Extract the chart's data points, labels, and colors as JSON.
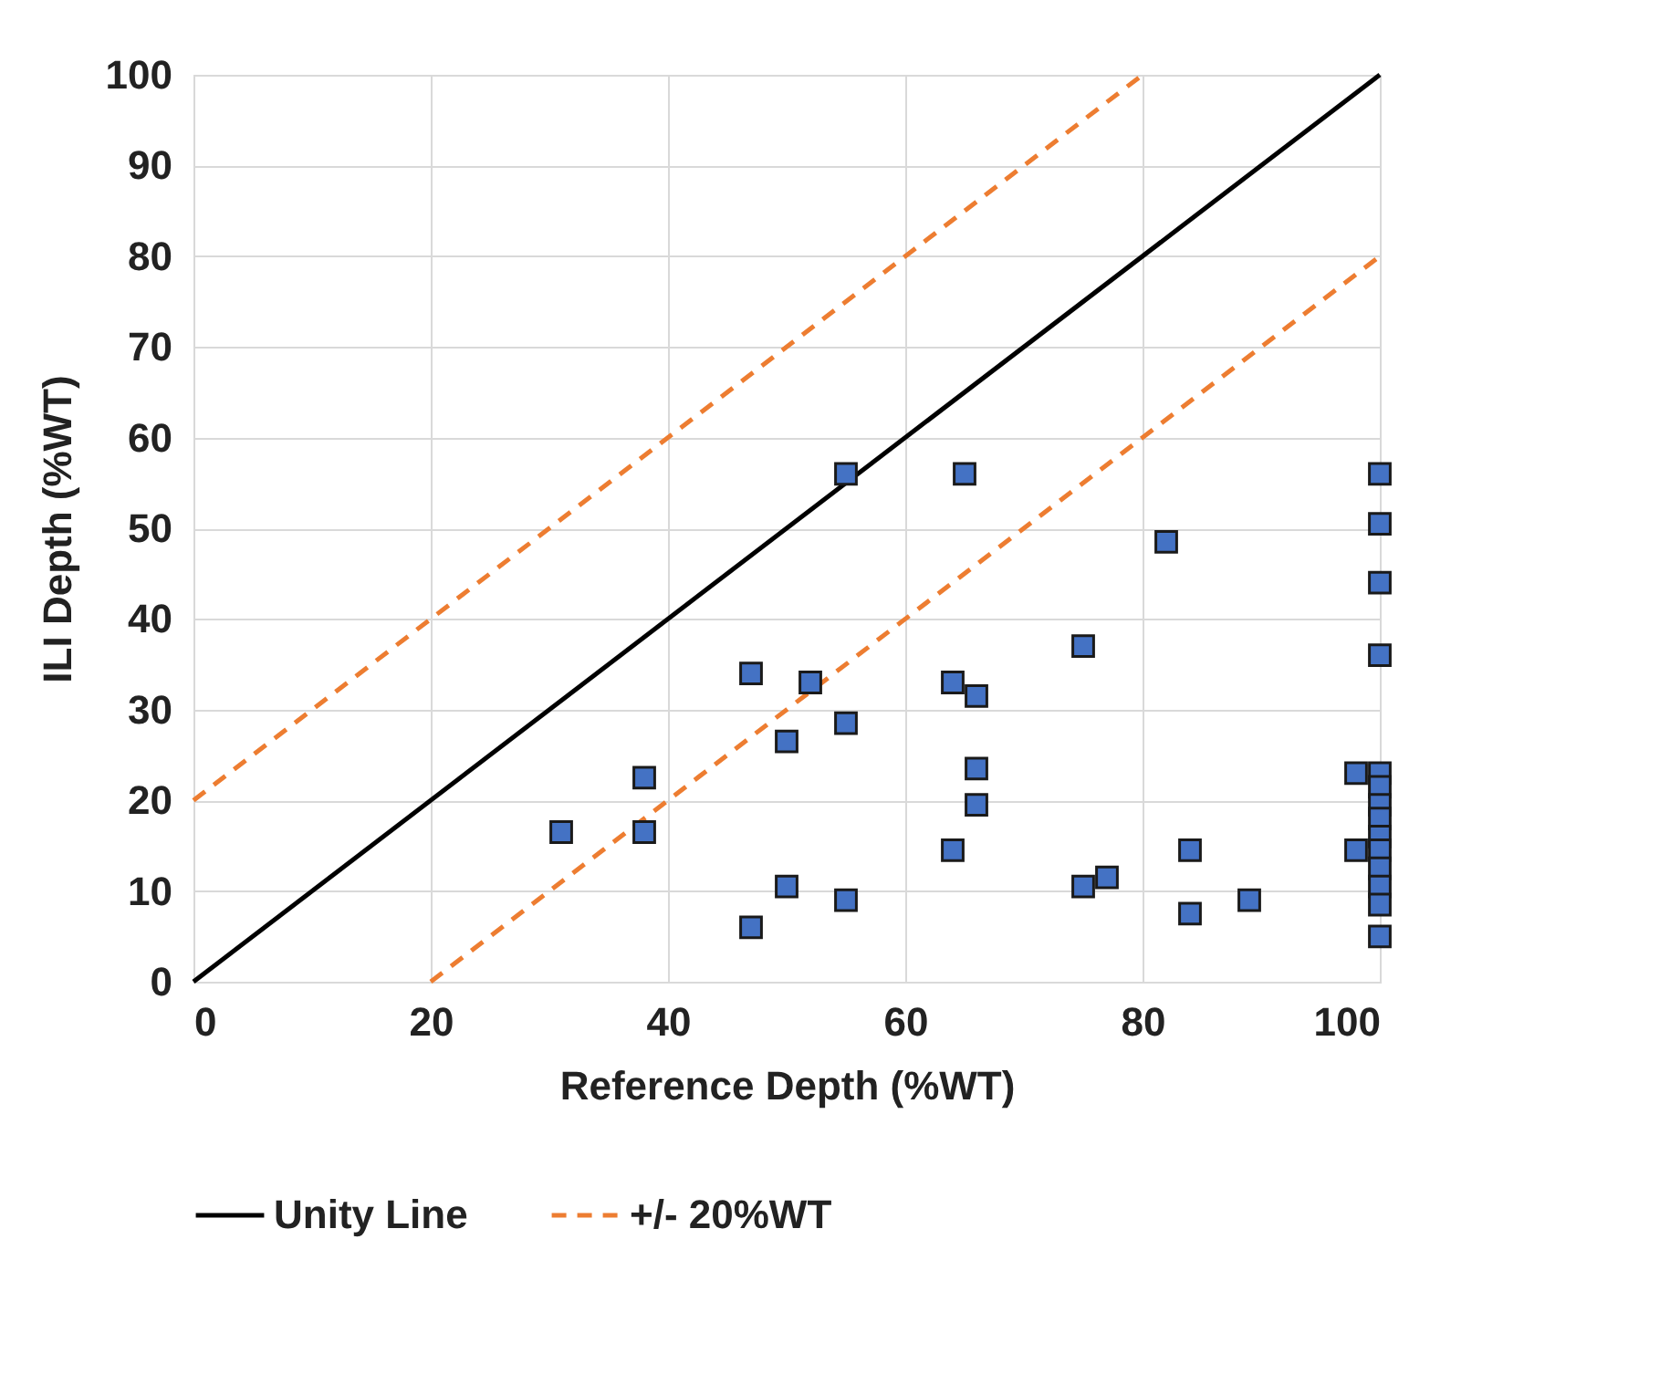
{
  "chart_data": {
    "type": "scatter",
    "xlabel": "Reference Depth  (%WT)",
    "ylabel": "ILI Depth  (%WT)",
    "xlim": [
      0,
      100
    ],
    "ylim": [
      0,
      100
    ],
    "xticks": [
      0,
      20,
      40,
      60,
      80,
      100
    ],
    "yticks": [
      0,
      10,
      20,
      30,
      40,
      50,
      60,
      70,
      80,
      90,
      100
    ],
    "grid": true,
    "legend": "bottom",
    "series": [
      {
        "marker": "square",
        "color": "#4472c4",
        "x": [
          31,
          38,
          38,
          47,
          47,
          50,
          50,
          52,
          55,
          55,
          55,
          64,
          64,
          65,
          66,
          66,
          66,
          75,
          75,
          77,
          82,
          84,
          84,
          89,
          98,
          98,
          100,
          100,
          100,
          100,
          100,
          100,
          100,
          100,
          100,
          100,
          100,
          100,
          100,
          100
        ],
        "values": [
          16.5,
          22.5,
          16.5,
          34,
          6,
          26.5,
          10.5,
          33,
          56,
          28.5,
          9,
          33,
          14.5,
          56,
          31.5,
          23.5,
          19.5,
          37,
          10.5,
          11.5,
          48.5,
          14.5,
          7.5,
          9,
          23,
          14.5,
          56,
          50.5,
          44,
          36,
          23,
          21.5,
          19.5,
          18,
          16,
          14.5,
          12.5,
          10.5,
          8.5,
          5
        ]
      },
      {
        "type": "line",
        "name": "Unity Line",
        "color": "#000000",
        "line_style": "solid",
        "x": [
          0,
          100
        ],
        "values": [
          0,
          100
        ]
      },
      {
        "type": "line",
        "name": "+/- 20%WT",
        "color": "#ed7d31",
        "line_style": "dashed",
        "x": [
          0,
          80
        ],
        "values": [
          20,
          100
        ]
      },
      {
        "type": "line",
        "color": "#ed7d31",
        "line_style": "dashed",
        "x": [
          20,
          100
        ],
        "values": [
          0,
          80
        ]
      }
    ]
  }
}
